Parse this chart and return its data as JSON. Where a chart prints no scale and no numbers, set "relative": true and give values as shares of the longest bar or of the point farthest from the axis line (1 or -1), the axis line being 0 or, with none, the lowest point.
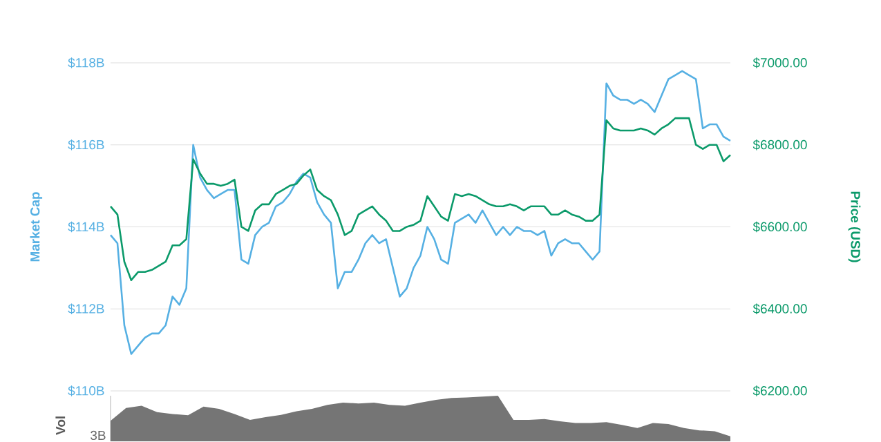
{
  "chart_data": [
    {
      "type": "line",
      "ylabel": "Market Cap",
      "y2label": "Price (USD)",
      "categories": [
        null,
        null,
        null,
        null,
        null,
        null,
        null,
        null,
        null,
        null,
        null,
        null,
        null,
        null,
        null,
        null,
        null,
        null,
        null,
        null,
        null,
        null,
        null,
        null,
        null,
        null,
        null,
        null,
        null,
        null,
        null,
        null,
        null,
        null,
        null,
        null,
        null,
        null,
        null,
        null,
        null,
        null,
        null,
        null,
        null,
        null,
        null,
        null,
        null,
        null,
        null,
        null,
        null,
        null,
        null,
        null,
        null,
        null,
        null,
        null,
        null,
        null,
        null,
        null,
        null,
        null,
        null,
        null,
        null,
        null,
        null,
        null,
        null,
        null,
        null,
        null,
        null,
        null,
        null,
        null,
        null,
        null,
        null,
        null,
        null,
        null,
        null,
        null,
        null,
        null,
        null
      ],
      "series": [
        {
          "color": "#56b0e3",
          "values": [
            113.8,
            113.6,
            111.6,
            110.9,
            111.1,
            111.3,
            111.4,
            111.4,
            111.6,
            112.3,
            112.1,
            112.5,
            116.0,
            115.2,
            114.9,
            114.7,
            114.8,
            114.9,
            114.9,
            113.2,
            113.1,
            113.8,
            114.0,
            114.1,
            114.5,
            114.6,
            114.8,
            115.1,
            115.3,
            115.2,
            114.6,
            114.3,
            114.1,
            112.5,
            112.9,
            112.9,
            113.2,
            113.6,
            113.8,
            113.6,
            113.7,
            113.0,
            112.3,
            112.5,
            113.0,
            113.3,
            114.0,
            113.7,
            113.2,
            113.1,
            114.1,
            114.2,
            114.3,
            114.1,
            114.4,
            114.1,
            113.8,
            114.0,
            113.8,
            114.0,
            113.9,
            113.9,
            113.8,
            113.9,
            113.3,
            113.6,
            113.7,
            113.6,
            113.6,
            113.4,
            113.2,
            113.4,
            117.5,
            117.2,
            117.1,
            117.1,
            117.0,
            117.1,
            117.0,
            116.8,
            117.2,
            117.6,
            117.7,
            117.8,
            117.7,
            117.6,
            116.4,
            116.5,
            116.5,
            116.2,
            116.1
          ]
        },
        {
          "color": "#0b9a6a",
          "axis": "y2",
          "values": [
            6650,
            6630,
            6515,
            6470,
            6490,
            6490,
            6495,
            6505,
            6515,
            6555,
            6555,
            6570,
            6765,
            6730,
            6705,
            6705,
            6700,
            6705,
            6715,
            6600,
            6590,
            6640,
            6655,
            6655,
            6680,
            6690,
            6700,
            6705,
            6725,
            6740,
            6690,
            6675,
            6665,
            6630,
            6580,
            6590,
            6630,
            6640,
            6650,
            6630,
            6615,
            6590,
            6590,
            6600,
            6605,
            6615,
            6675,
            6650,
            6625,
            6615,
            6680,
            6675,
            6680,
            6675,
            6665,
            6655,
            6650,
            6650,
            6655,
            6650,
            6640,
            6650,
            6650,
            6650,
            6630,
            6630,
            6640,
            6630,
            6625,
            6615,
            6615,
            6630,
            6860,
            6840,
            6835,
            6835,
            6835,
            6840,
            6835,
            6825,
            6840,
            6850,
            6865,
            6865,
            6865,
            6800,
            6790,
            6800,
            6800,
            6760,
            6775
          ]
        }
      ],
      "ylim": [
        110,
        118
      ],
      "yticks": [
        {
          "value": 110,
          "label": "$110B"
        },
        {
          "value": 112,
          "label": "$112B"
        },
        {
          "value": 114,
          "label": "$114B"
        },
        {
          "value": 116,
          "label": "$116B"
        },
        {
          "value": 118,
          "label": "$118B"
        }
      ],
      "y2lim": [
        6200,
        7000
      ],
      "y2ticks": [
        {
          "value": 6200,
          "label": "$6200.00"
        },
        {
          "value": 6400,
          "label": "$6400.00"
        },
        {
          "value": 6600,
          "label": "$6600.00"
        },
        {
          "value": 6800,
          "label": "$6800.00"
        },
        {
          "value": 7000,
          "label": "$7000.00"
        }
      ],
      "grid": "y",
      "marker": "none",
      "line_style": "solid"
    },
    {
      "type": "area",
      "relative": true,
      "ylabel": "Vol",
      "annotations": [
        "3B"
      ],
      "color": "#757575",
      "categories": [
        null,
        null,
        null,
        null,
        null,
        null,
        null,
        null,
        null,
        null,
        null,
        null,
        null,
        null,
        null,
        null,
        null,
        null,
        null,
        null,
        null,
        null,
        null,
        null,
        null,
        null,
        null,
        null,
        null,
        null,
        null,
        null,
        null,
        null,
        null,
        null,
        null,
        null,
        null,
        null,
        null
      ],
      "values": [
        0.45,
        0.73,
        0.78,
        0.64,
        0.6,
        0.57,
        0.76,
        0.71,
        0.6,
        0.47,
        0.53,
        0.58,
        0.66,
        0.71,
        0.8,
        0.85,
        0.83,
        0.85,
        0.8,
        0.78,
        0.85,
        0.91,
        0.95,
        0.96,
        0.98,
        1,
        0.47,
        0.47,
        0.49,
        0.44,
        0.4,
        0.4,
        0.42,
        0.36,
        0.29,
        0.4,
        0.38,
        0.29,
        0.24,
        0.22,
        0.11
      ]
    }
  ]
}
